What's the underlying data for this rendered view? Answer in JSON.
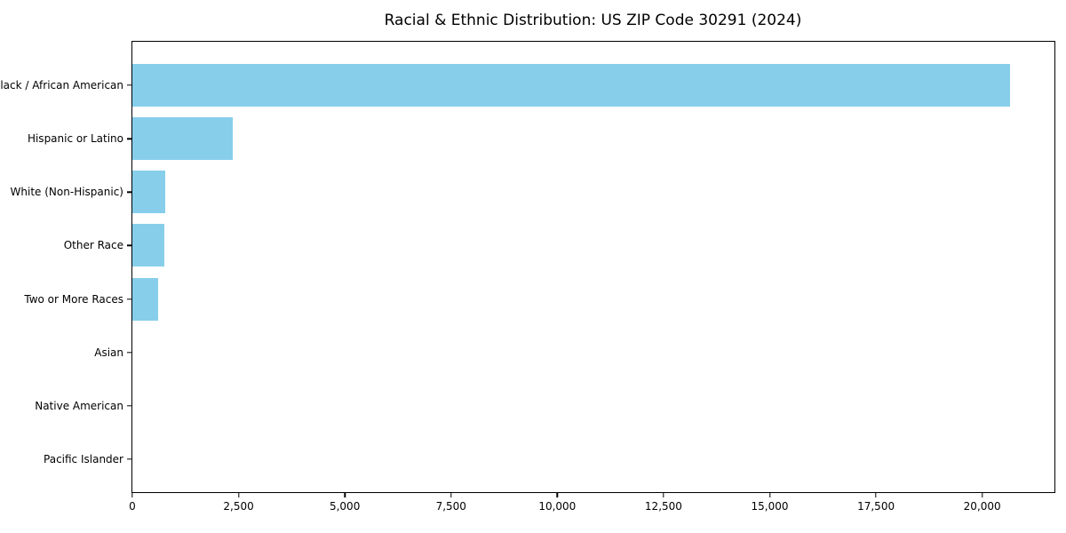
{
  "chart_data": {
    "type": "bar",
    "orientation": "horizontal",
    "title": "Racial & Ethnic Distribution: US ZIP Code 30291 (2024)",
    "categories": [
      "Black / African American",
      "Hispanic or Latino",
      "White (Non-Hispanic)",
      "Other Race",
      "Two or More Races",
      "Asian",
      "Native American",
      "Pacific Islander"
    ],
    "values": [
      20650,
      2360,
      770,
      750,
      600,
      0,
      0,
      0
    ],
    "xlabel": "",
    "ylabel": "",
    "xlim": [
      0,
      21700
    ],
    "x_ticks": [
      0,
      2500,
      5000,
      7500,
      10000,
      12500,
      15000,
      17500,
      20000
    ],
    "x_tick_labels": [
      "0",
      "2,500",
      "5,000",
      "7,500",
      "10,000",
      "12,500",
      "15,000",
      "17,500",
      "20,000"
    ],
    "bar_color": "#87CEEB",
    "axis_color": "#000000",
    "background_color": "#FFFFFF",
    "grid": false,
    "legend": "none"
  }
}
